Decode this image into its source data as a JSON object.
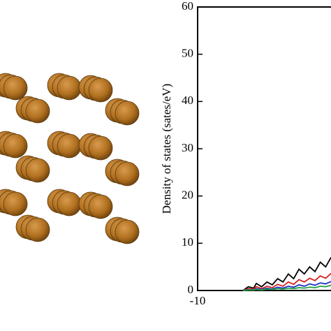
{
  "chart_data": {
    "type": "line",
    "ylabel": "Density of states (sates/eV)",
    "x": [
      -8.3,
      -8.1,
      -7.9,
      -7.8,
      -7.6,
      -7.4,
      -7.2,
      -7.0,
      -6.8,
      -6.6,
      -6.4,
      -6.2,
      -6.0,
      -5.8,
      -5.6,
      -5.4,
      -5.2,
      -5.0
    ],
    "series": [
      {
        "color": "#000000",
        "values": [
          0,
          0.8,
          0.5,
          1.5,
          0.8,
          1.8,
          1.2,
          2.5,
          1.8,
          3.5,
          2.5,
          4.5,
          3.5,
          5,
          4,
          6,
          5,
          7
        ]
      },
      {
        "color": "#d62020",
        "values": [
          0,
          0.4,
          0.3,
          0.8,
          0.4,
          0.9,
          0.6,
          1.3,
          0.9,
          1.8,
          1.3,
          2.3,
          1.8,
          2.6,
          2.1,
          3.1,
          2.6,
          3.6
        ]
      },
      {
        "color": "#2030c8",
        "values": [
          0,
          0.2,
          0.1,
          0.4,
          0.2,
          0.5,
          0.3,
          0.7,
          0.5,
          0.9,
          0.7,
          1.2,
          0.9,
          1.4,
          1.1,
          1.6,
          1.4,
          1.9
        ]
      },
      {
        "color": "#20a040",
        "values": [
          0,
          0.1,
          0.1,
          0.2,
          0.1,
          0.3,
          0.2,
          0.4,
          0.3,
          0.5,
          0.4,
          0.6,
          0.5,
          0.7,
          0.6,
          0.9,
          0.8,
          1.1
        ]
      }
    ],
    "xlim": [
      -10,
      -5
    ],
    "xticks": [
      -10
    ],
    "ylim": [
      0,
      60
    ],
    "yticks": [
      0,
      10,
      20,
      30,
      40,
      50,
      60
    ]
  }
}
